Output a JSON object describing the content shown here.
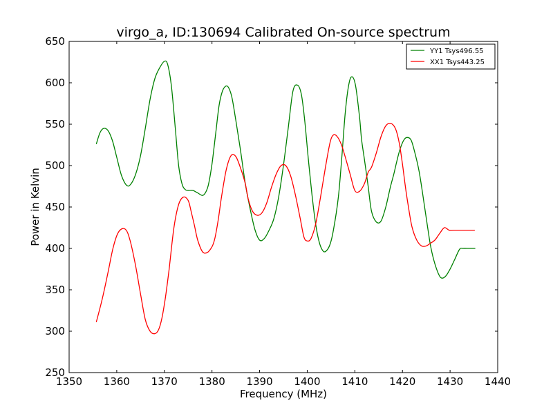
{
  "chart_data": {
    "type": "line",
    "title": "virgo_a, ID:130694 Calibrated On-source spectrum",
    "xlabel": "Frequency (MHz)",
    "ylabel": "Power in Kelvin",
    "xlim": [
      1350,
      1440
    ],
    "ylim": [
      250,
      650
    ],
    "xticks": [
      "1350",
      "1360",
      "1370",
      "1380",
      "1390",
      "1400",
      "1410",
      "1420",
      "1430",
      "1440"
    ],
    "yticks": [
      "250",
      "300",
      "350",
      "400",
      "450",
      "500",
      "550",
      "600",
      "650"
    ],
    "grid": false,
    "legend_position": "top-right",
    "series": [
      {
        "name": "YY1 Tsys496.55",
        "color": "#008000",
        "x": [
          1355.7,
          1356.5,
          1357.3,
          1358.2,
          1359.1,
          1360.0,
          1361.0,
          1362.1,
          1363.0,
          1364.0,
          1365.0,
          1366.0,
          1367.0,
          1368.0,
          1369.0,
          1370.0,
          1370.7,
          1371.5,
          1372.3,
          1373.0,
          1373.7,
          1374.4,
          1375.2,
          1376.0,
          1377.0,
          1378.0,
          1378.7,
          1379.3,
          1380.0,
          1380.8,
          1381.5,
          1382.2,
          1382.9,
          1383.5,
          1384.2,
          1385.0,
          1386.0,
          1387.0,
          1388.0,
          1389.0,
          1390.0,
          1391.0,
          1392.0,
          1393.0,
          1394.0,
          1395.0,
          1396.0,
          1397.0,
          1398.0,
          1398.8,
          1399.5,
          1400.2,
          1401.0,
          1401.7,
          1402.5,
          1403.3,
          1404.0,
          1404.8,
          1405.5,
          1406.5,
          1407.2,
          1408.0,
          1408.8,
          1409.5,
          1410.2,
          1411.0,
          1411.4,
          1412.0,
          1412.8,
          1413.5,
          1414.5,
          1415.5,
          1416.5,
          1417.5,
          1418.2,
          1418.8,
          1419.5,
          1420.3,
          1421.0,
          1421.8,
          1422.5,
          1423.5,
          1424.5,
          1425.3,
          1426.0,
          1427.0,
          1428.0,
          1429.0,
          1430.0,
          1431.0,
          1432.0,
          1432.7,
          1433.5,
          1434.3,
          1435.3
        ],
        "values": [
          526,
          540,
          545,
          542,
          530,
          510,
          488,
          476,
          478,
          490,
          512,
          545,
          580,
          605,
          618,
          626,
          622,
          595,
          545,
          500,
          478,
          471,
          470,
          470,
          467,
          464,
          468,
          478,
          502,
          540,
          573,
          590,
          596,
          594,
          582,
          555,
          518,
          478,
          448,
          423,
          410,
          412,
          422,
          436,
          462,
          500,
          545,
          590,
          597,
          585,
          553,
          510,
          465,
          432,
          408,
          397,
          397,
          405,
          422,
          460,
          505,
          565,
          600,
          607,
          595,
          558,
          532,
          508,
          475,
          445,
          432,
          433,
          450,
          475,
          490,
          505,
          520,
          531,
          534,
          531,
          518,
          493,
          456,
          425,
          400,
          378,
          365,
          366,
          375,
          387,
          399,
          400,
          400,
          400,
          400
        ]
      },
      {
        "name": "XX1 Tsys443.25",
        "color": "#ff0000",
        "x": [
          1355.7,
          1357.0,
          1358.2,
          1359.2,
          1360.2,
          1361.3,
          1362.2,
          1363.0,
          1364.0,
          1365.0,
          1366.0,
          1367.0,
          1368.0,
          1368.8,
          1369.5,
          1370.2,
          1371.0,
          1372.0,
          1373.0,
          1374.0,
          1375.0,
          1375.6,
          1376.3,
          1377.0,
          1378.0,
          1379.0,
          1380.0,
          1380.6,
          1381.3,
          1382.0,
          1383.0,
          1384.0,
          1385.0,
          1386.0,
          1387.0,
          1387.6,
          1388.5,
          1389.5,
          1390.5,
          1391.5,
          1392.5,
          1393.5,
          1394.5,
          1395.5,
          1396.5,
          1397.5,
          1398.5,
          1399.3,
          1400.0,
          1400.8,
          1401.8,
          1402.8,
          1403.8,
          1404.8,
          1405.5,
          1406.3,
          1407.2,
          1408.0,
          1409.0,
          1410.0,
          1411.0,
          1412.0,
          1412.8,
          1413.5,
          1414.5,
          1415.5,
          1416.5,
          1417.5,
          1418.5,
          1419.3,
          1420.0,
          1420.6,
          1421.2,
          1422.0,
          1423.0,
          1424.0,
          1425.0,
          1425.8,
          1426.8,
          1427.8,
          1428.8,
          1429.8,
          1430.8,
          1431.8,
          1432.8,
          1433.5,
          1434.3,
          1434.8,
          1435.2
        ],
        "values": [
          311,
          340,
          372,
          400,
          418,
          424,
          420,
          405,
          378,
          345,
          314,
          300,
          297,
          302,
          316,
          340,
          375,
          425,
          453,
          462,
          458,
          445,
          428,
          410,
          396,
          395,
          402,
          412,
          434,
          462,
          495,
          512,
          511,
          497,
          478,
          460,
          445,
          440,
          443,
          455,
          474,
          490,
          500,
          500,
          488,
          465,
          437,
          414,
          409,
          412,
          430,
          462,
          497,
          528,
          537,
          535,
          525,
          510,
          490,
          470,
          469,
          478,
          492,
          498,
          515,
          535,
          548,
          551,
          545,
          528,
          502,
          475,
          452,
          426,
          410,
          403,
          403,
          406,
          410,
          418,
          425,
          422,
          422,
          422,
          422,
          422,
          422,
          422,
          422
        ]
      }
    ]
  }
}
